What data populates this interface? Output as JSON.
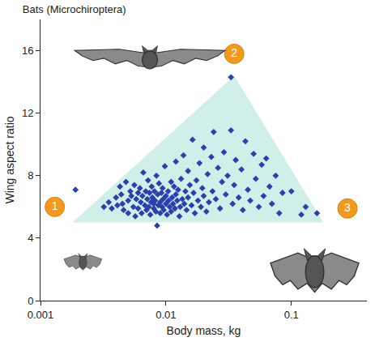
{
  "chart_data": {
    "type": "scatter",
    "title": "Bats (Microchiroptera)",
    "x_label": "Body mass, kg",
    "y_label": "Wing aspect ratio",
    "log": "x",
    "grid": false,
    "marker": "diamond",
    "color": "#2b3fae",
    "xlim": [
      0.001,
      0.4
    ],
    "ylim": [
      0,
      18
    ],
    "xticks": [
      0.001,
      0.01,
      0.1
    ],
    "yticks": [
      0,
      4,
      8,
      12,
      16
    ],
    "x": [
      0.0019,
      0.0032,
      0.0035,
      0.0037,
      0.004,
      0.0041,
      0.0043,
      0.0044,
      0.0045,
      0.0046,
      0.0048,
      0.005,
      0.005,
      0.0052,
      0.0053,
      0.0055,
      0.0056,
      0.0057,
      0.0058,
      0.006,
      0.006,
      0.0062,
      0.0063,
      0.0064,
      0.0065,
      0.0066,
      0.0068,
      0.0069,
      0.007,
      0.0071,
      0.0072,
      0.0073,
      0.0074,
      0.0075,
      0.0076,
      0.0077,
      0.0078,
      0.008,
      0.008,
      0.0081,
      0.0082,
      0.0083,
      0.0084,
      0.0085,
      0.0086,
      0.0087,
      0.0088,
      0.009,
      0.009,
      0.0092,
      0.0093,
      0.0094,
      0.0095,
      0.0096,
      0.0098,
      0.01,
      0.01,
      0.0102,
      0.0104,
      0.0105,
      0.0107,
      0.011,
      0.011,
      0.0112,
      0.0114,
      0.0116,
      0.0118,
      0.012,
      0.012,
      0.0123,
      0.0125,
      0.0128,
      0.013,
      0.0132,
      0.0135,
      0.0138,
      0.014,
      0.0143,
      0.0146,
      0.015,
      0.015,
      0.0155,
      0.016,
      0.0163,
      0.0166,
      0.017,
      0.0175,
      0.018,
      0.0185,
      0.019,
      0.0195,
      0.02,
      0.02,
      0.021,
      0.0215,
      0.022,
      0.023,
      0.0235,
      0.024,
      0.025,
      0.026,
      0.027,
      0.028,
      0.029,
      0.03,
      0.031,
      0.033,
      0.033,
      0.034,
      0.035,
      0.036,
      0.038,
      0.04,
      0.041,
      0.043,
      0.045,
      0.047,
      0.05,
      0.052,
      0.055,
      0.058,
      0.06,
      0.063,
      0.067,
      0.07,
      0.075,
      0.08,
      0.085,
      0.1,
      0.12,
      0.13,
      0.16
    ],
    "values": [
      7.1,
      6.0,
      6.3,
      5.9,
      6.6,
      6.1,
      7.3,
      6.8,
      6.2,
      5.8,
      7.6,
      6.4,
      5.6,
      7.0,
      6.7,
      6.0,
      7.4,
      5.4,
      6.5,
      6.9,
      5.9,
      7.2,
      6.3,
      5.6,
      6.7,
      8.2,
      6.1,
      7.0,
      5.8,
      6.5,
      7.7,
      6.0,
      6.9,
      5.5,
      6.3,
      7.3,
      6.6,
      5.9,
      6.2,
      7.0,
      6.4,
      5.7,
      8.0,
      4.8,
      6.8,
      6.1,
      7.5,
      6.3,
      5.6,
      6.9,
      6.0,
      7.2,
      6.5,
      5.8,
      8.6,
      6.2,
      6.7,
      5.5,
      7.0,
      6.4,
      6.0,
      7.6,
      5.7,
      6.6,
      6.2,
      7.3,
      5.9,
      6.8,
      8.9,
      6.4,
      7.1,
      5.4,
      6.0,
      7.8,
      6.5,
      9.3,
      6.2,
      7.0,
      5.8,
      8.3,
      6.6,
      7.4,
      6.1,
      10.3,
      6.9,
      5.6,
      7.7,
      6.4,
      8.8,
      6.0,
      7.2,
      9.8,
      6.7,
      5.7,
      8.1,
      6.3,
      9.2,
      7.0,
      10.8,
      6.5,
      8.5,
      5.9,
      7.6,
      9.5,
      6.8,
      8.0,
      14.3,
      10.9,
      6.2,
      7.4,
      9.0,
      6.6,
      8.4,
      5.8,
      10.2,
      7.1,
      6.4,
      9.4,
      7.8,
      6.0,
      8.7,
      6.7,
      9.1,
      7.3,
      6.2,
      8.0,
      5.6,
      6.9,
      7.0,
      5.5,
      6.0,
      5.6
    ],
    "envelope": {
      "x": [
        0.0018,
        0.035,
        0.18
      ],
      "values": [
        5,
        14.4,
        5
      ]
    },
    "annotations": [
      {
        "text": "1",
        "x": 0.0013,
        "y": 6.0
      },
      {
        "text": "2",
        "x": 0.035,
        "y": 15.8
      },
      {
        "text": "3",
        "x": 0.28,
        "y": 5.9
      }
    ]
  }
}
